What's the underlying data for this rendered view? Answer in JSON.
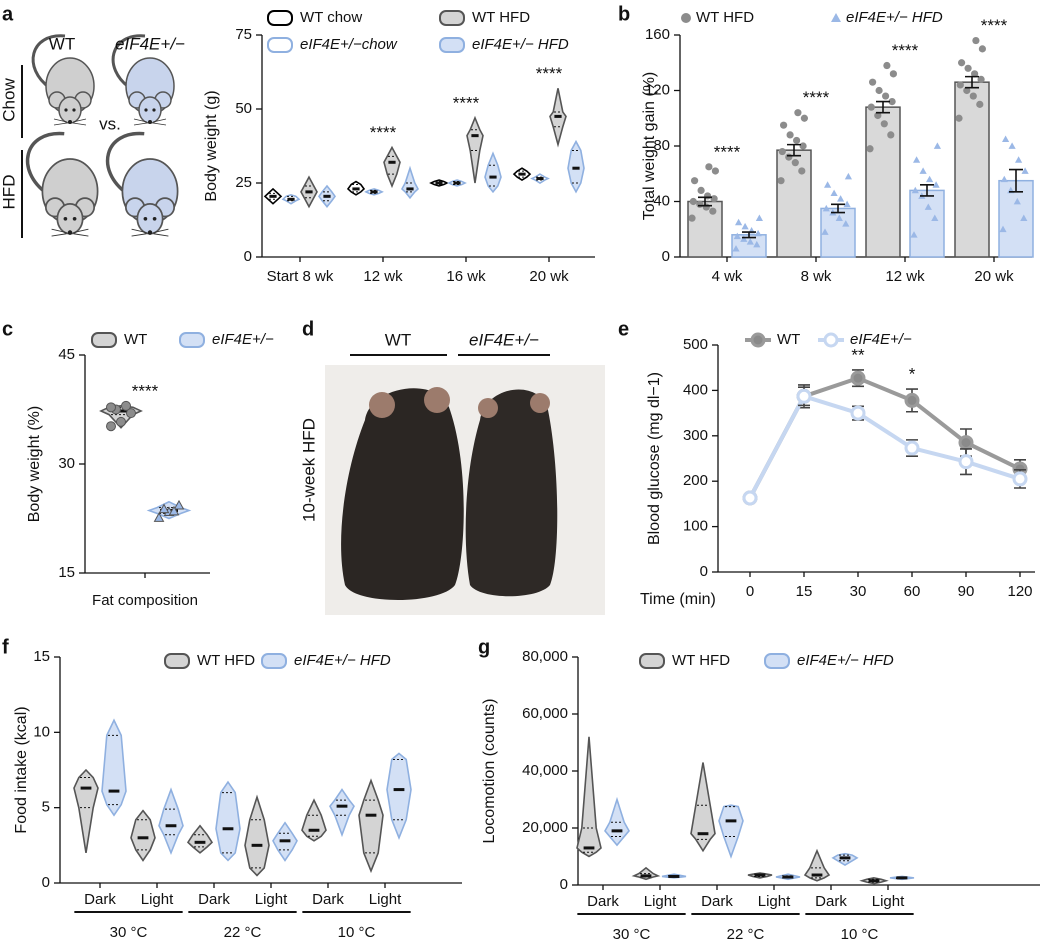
{
  "panel_labels": [
    "a",
    "b",
    "c",
    "d",
    "e",
    "f",
    "g"
  ],
  "cartoon": {
    "left": "WT",
    "right": "eIF4E+/−",
    "top_diet": "Chow",
    "bottom_diet": "HFD",
    "vs": "vs."
  },
  "photo": {
    "condition": "10-week HFD",
    "left": "WT",
    "right": "eIF4E+/−"
  },
  "chart_data": [
    {
      "type": "violin",
      "ylabel": "Body weight (g)",
      "categories": [
        "Start 8 wk",
        "12 wk",
        "16 wk",
        "20 wk"
      ],
      "ylim": [
        0,
        75
      ],
      "yticks": [
        0,
        25,
        50,
        75
      ],
      "series": [
        {
          "name": "WT chow",
          "color": "#000000",
          "fill": "#ffffff",
          "min": [
            18,
            21,
            24,
            26
          ],
          "q1": [
            19.5,
            22,
            24.5,
            27
          ],
          "median": [
            20.5,
            23,
            25,
            28
          ],
          "q3": [
            21.5,
            24.5,
            25.5,
            29
          ],
          "max": [
            23,
            25.5,
            26,
            30
          ]
        },
        {
          "name": "eIF4E+/−chow",
          "color": "#8fb0e0",
          "fill": "#ffffff",
          "min": [
            18,
            21,
            24,
            25
          ],
          "q1": [
            19,
            21.5,
            24.5,
            26
          ],
          "median": [
            19.5,
            22,
            25,
            26.5
          ],
          "q3": [
            20.5,
            22.5,
            25.5,
            27
          ],
          "max": [
            21,
            23,
            26,
            28
          ]
        },
        {
          "name": "WT HFD",
          "color": "#555555",
          "fill": "#d4d4d4",
          "min": [
            17,
            24,
            25,
            38
          ],
          "q1": [
            20,
            28,
            36,
            44
          ],
          "median": [
            22,
            32,
            41,
            47.5
          ],
          "q3": [
            24,
            34,
            43,
            49
          ],
          "max": [
            27,
            37,
            47,
            57
          ]
        },
        {
          "name": "eIF4E+/− HFD",
          "color": "#8fb0e0",
          "fill": "#d3e0f5",
          "min": [
            17,
            20,
            22,
            22
          ],
          "q1": [
            19,
            22,
            24,
            25
          ],
          "median": [
            20.5,
            23,
            27,
            30
          ],
          "q3": [
            22,
            25,
            31,
            36
          ],
          "max": [
            24,
            30,
            35,
            39
          ]
        }
      ],
      "annotations": [
        {
          "text": "****",
          "x": "12 wk"
        },
        {
          "text": "****",
          "x": "16 wk"
        },
        {
          "text": "****",
          "x": "20 wk"
        }
      ]
    },
    {
      "type": "bar",
      "ylabel": "Total weight gain (%)",
      "categories": [
        "4 wk",
        "8 wk",
        "12 wk",
        "20 wk"
      ],
      "ylim": [
        0,
        160
      ],
      "yticks": [
        0,
        40,
        80,
        120,
        160
      ],
      "series": [
        {
          "name": "WT HFD",
          "color": "#555555",
          "fill": "#d9d9d9",
          "marker": "circle",
          "marker_color": "#8c8c8c",
          "values": [
            40,
            77,
            108,
            126
          ],
          "errors": [
            3,
            4,
            4,
            4
          ],
          "points": [
            [
              28,
              33,
              36,
              38,
              40,
              42,
              44,
              48,
              55,
              62,
              65
            ],
            [
              55,
              62,
              68,
              72,
              76,
              80,
              84,
              88,
              95,
              100,
              104
            ],
            [
              78,
              88,
              96,
              102,
              108,
              112,
              116,
              120,
              126,
              132,
              138
            ],
            [
              100,
              110,
              116,
              120,
              124,
              128,
              132,
              136,
              140,
              150,
              156
            ]
          ]
        },
        {
          "name": "eIF4E+/− HFD",
          "color": "#8fb0e0",
          "fill": "#d3e0f5",
          "marker": "triangle",
          "marker_color": "#9bb8e6",
          "values": [
            16,
            35,
            48,
            55
          ],
          "errors": [
            2,
            3,
            4,
            8
          ],
          "points": [
            [
              6,
              9,
              11,
              13,
              15,
              17,
              19,
              22,
              25,
              28
            ],
            [
              18,
              24,
              28,
              32,
              35,
              38,
              42,
              46,
              52,
              58
            ],
            [
              16,
              28,
              36,
              44,
              48,
              52,
              56,
              62,
              70,
              80
            ],
            [
              20,
              28,
              40,
              48,
              56,
              62,
              70,
              80,
              85
            ]
          ]
        }
      ],
      "annotations": [
        {
          "text": "****",
          "x": "4 wk"
        },
        {
          "text": "****",
          "x": "8 wk"
        },
        {
          "text": "****",
          "x": "12 wk"
        },
        {
          "text": "****",
          "x": "20 wk"
        }
      ]
    },
    {
      "type": "violin",
      "ylabel": "Body weight (%)",
      "categories": [
        "Fat composition"
      ],
      "ylim": [
        15,
        45
      ],
      "yticks": [
        15,
        30,
        45
      ],
      "series": [
        {
          "name": "WT",
          "color": "#555555",
          "fill": "#d4d4d4",
          "min": [
            35
          ],
          "q1": [
            36.8
          ],
          "median": [
            37.3
          ],
          "q3": [
            37.8
          ],
          "max": [
            38
          ],
          "marker": "circle",
          "marker_color": "#8c8c8c",
          "points": [
            [
              35.2,
              35.8,
              37.0,
              37.5,
              38.0,
              37.8
            ]
          ]
        },
        {
          "name": "eIF4E+/−",
          "color": "#8fb0e0",
          "fill": "#d3e0f5",
          "min": [
            22.5
          ],
          "q1": [
            23.2
          ],
          "median": [
            23.6
          ],
          "q3": [
            24
          ],
          "max": [
            24.8
          ],
          "marker": "triangle",
          "marker_color": "#9bb8e6",
          "points": [
            [
              22.6,
              23.4,
              24.3,
              23.8,
              23.5
            ]
          ]
        }
      ],
      "annotations": [
        {
          "text": "****",
          "x": "Fat composition"
        }
      ]
    },
    {
      "type": "line",
      "ylabel": "Blood glucose (mg dl−1)",
      "xlabel": "Time (min)",
      "categories": [
        "0",
        "15",
        "30",
        "60",
        "90",
        "120"
      ],
      "ylim": [
        0,
        500
      ],
      "yticks": [
        0,
        100,
        200,
        300,
        400,
        500
      ],
      "series": [
        {
          "name": "WT",
          "color": "#9a9a9a",
          "marker_color": "#8a8a8a",
          "values": [
            163,
            387,
            427,
            378,
            285,
            227
          ],
          "errors": [
            5,
            25,
            18,
            25,
            30,
            20
          ]
        },
        {
          "name": "eIF4E+/−",
          "color": "#c6d7f1",
          "marker_color": "#ffffff",
          "values": [
            163,
            387,
            350,
            273,
            243,
            205
          ],
          "errors": [
            5,
            20,
            15,
            18,
            28,
            20
          ]
        }
      ],
      "annotations": [
        {
          "text": "**",
          "x": "30"
        },
        {
          "text": "*",
          "x": "60"
        }
      ]
    },
    {
      "type": "violin",
      "ylabel": "Food intake (kcal)",
      "categories": [
        "Dark",
        "Light",
        "Dark",
        "Light",
        "Dark",
        "Light"
      ],
      "groups": [
        "30 °C",
        "22 °C",
        "10 °C"
      ],
      "ylim": [
        0,
        15
      ],
      "yticks": [
        0,
        5,
        10,
        15
      ],
      "series": [
        {
          "name": "WT HFD",
          "color": "#555555",
          "fill": "#d4d4d4",
          "min": [
            2,
            1.5,
            2,
            0.5,
            2.8,
            0.8
          ],
          "q1": [
            5,
            2.2,
            2.4,
            1,
            3.1,
            2
          ],
          "median": [
            6.3,
            3,
            2.7,
            2.5,
            3.5,
            4.5
          ],
          "q3": [
            7,
            4.2,
            3.2,
            4.2,
            4.5,
            5.5
          ],
          "max": [
            7.5,
            4.8,
            3.8,
            5.7,
            5.5,
            6.8
          ]
        },
        {
          "name": "eIF4E+/− HFD",
          "color": "#8fb0e0",
          "fill": "#d3e0f5",
          "min": [
            4.5,
            2,
            1.5,
            1.5,
            3.2,
            3
          ],
          "q1": [
            5.2,
            3.2,
            2,
            2.2,
            4.5,
            4.2
          ],
          "median": [
            6.1,
            3.8,
            3.6,
            2.8,
            5.1,
            6.2
          ],
          "q3": [
            9.8,
            4.9,
            6,
            3.3,
            5.5,
            8.2
          ],
          "max": [
            10.8,
            6.2,
            6.7,
            4,
            6.2,
            8.6
          ]
        }
      ]
    },
    {
      "type": "violin",
      "ylabel": "Locomotion (counts)",
      "categories": [
        "Dark",
        "Light",
        "Dark",
        "Light",
        "Dark",
        "Light"
      ],
      "groups": [
        "30 °C",
        "22 °C",
        "10 °C"
      ],
      "ylim": [
        0,
        80000
      ],
      "yticks": [
        0,
        {
          "value": 20000,
          "label": "20,000"
        },
        {
          "value": 40000,
          "label": "40,000"
        },
        {
          "value": 60000,
          "label": "60,000"
        },
        {
          "value": 80000,
          "label": "80,000"
        }
      ],
      "series": [
        {
          "name": "WT HFD",
          "color": "#555555",
          "fill": "#d4d4d4",
          "min": [
            10000,
            2000,
            12000,
            2500,
            1500,
            500
          ],
          "q1": [
            11500,
            2800,
            16000,
            3000,
            2500,
            1000
          ],
          "median": [
            13000,
            3200,
            18000,
            3500,
            3500,
            1500
          ],
          "q3": [
            20000,
            4000,
            28000,
            3800,
            6000,
            2000
          ],
          "max": [
            52000,
            6000,
            43000,
            4200,
            12000,
            2500
          ]
        },
        {
          "name": "eIF4E+/− HFD",
          "color": "#8fb0e0",
          "fill": "#d3e0f5",
          "min": [
            14000,
            2500,
            10000,
            2000,
            7000,
            2000
          ],
          "q1": [
            17000,
            2800,
            17000,
            2500,
            8500,
            2300
          ],
          "median": [
            19000,
            3000,
            22500,
            2800,
            9500,
            2500
          ],
          "q3": [
            22000,
            3300,
            27500,
            3200,
            10500,
            2700
          ],
          "max": [
            30000,
            3800,
            28000,
            3800,
            11000,
            3000
          ]
        }
      ]
    }
  ]
}
